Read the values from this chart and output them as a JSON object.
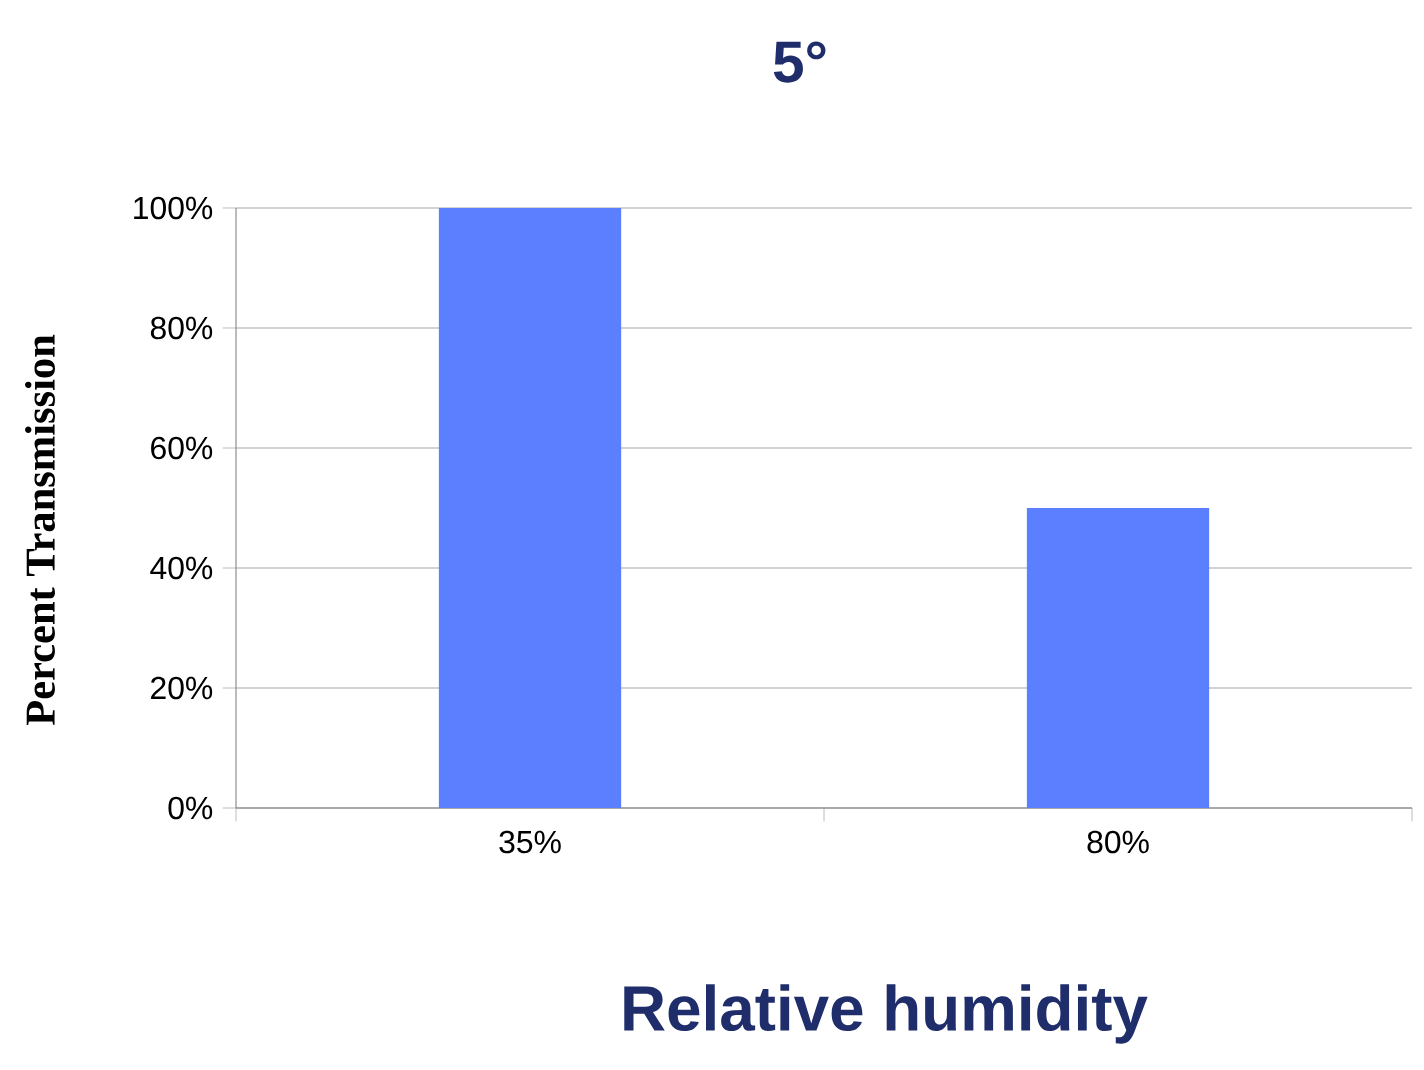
{
  "chart_data": {
    "type": "bar",
    "title": "5°",
    "xlabel": "Relative humidity",
    "ylabel": "Percent Transmission",
    "categories": [
      "35%",
      "80%"
    ],
    "values": [
      100,
      50
    ],
    "color": "#5b7fff",
    "ylim": [
      0,
      100
    ],
    "yticks": [
      {
        "value": 0,
        "label": "0%"
      },
      {
        "value": 20,
        "label": "20%"
      },
      {
        "value": 40,
        "label": "40%"
      },
      {
        "value": 60,
        "label": "60%"
      },
      {
        "value": 80,
        "label": "80%"
      },
      {
        "value": 100,
        "label": "100%"
      }
    ],
    "grid": "y"
  }
}
